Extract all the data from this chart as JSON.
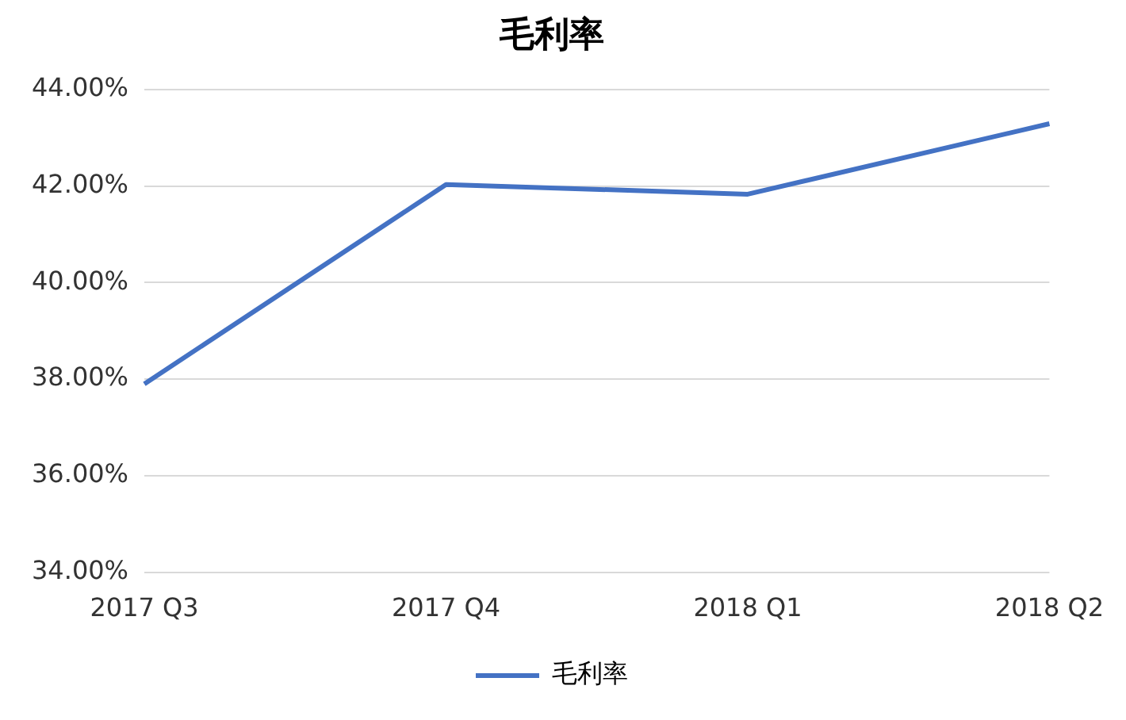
{
  "chart_data": {
    "type": "line",
    "title": "毛利率",
    "categories": [
      "2017 Q3",
      "2017 Q4",
      "2018 Q1",
      "2018 Q2"
    ],
    "series": [
      {
        "name": "毛利率",
        "color": "#4472c4",
        "values": [
          37.9,
          42.03,
          41.83,
          43.29
        ]
      }
    ],
    "ylim": [
      34,
      44
    ],
    "yticks": [
      {
        "value": 34,
        "label": "34.00%"
      },
      {
        "value": 36,
        "label": "36.00%"
      },
      {
        "value": 38,
        "label": "38.00%"
      },
      {
        "value": 40,
        "label": "40.00%"
      },
      {
        "value": 42,
        "label": "42.00%"
      },
      {
        "value": 44,
        "label": "44.00%"
      }
    ],
    "grid": "y",
    "legend": "bottom",
    "marker": "none",
    "line_style": "solid"
  }
}
